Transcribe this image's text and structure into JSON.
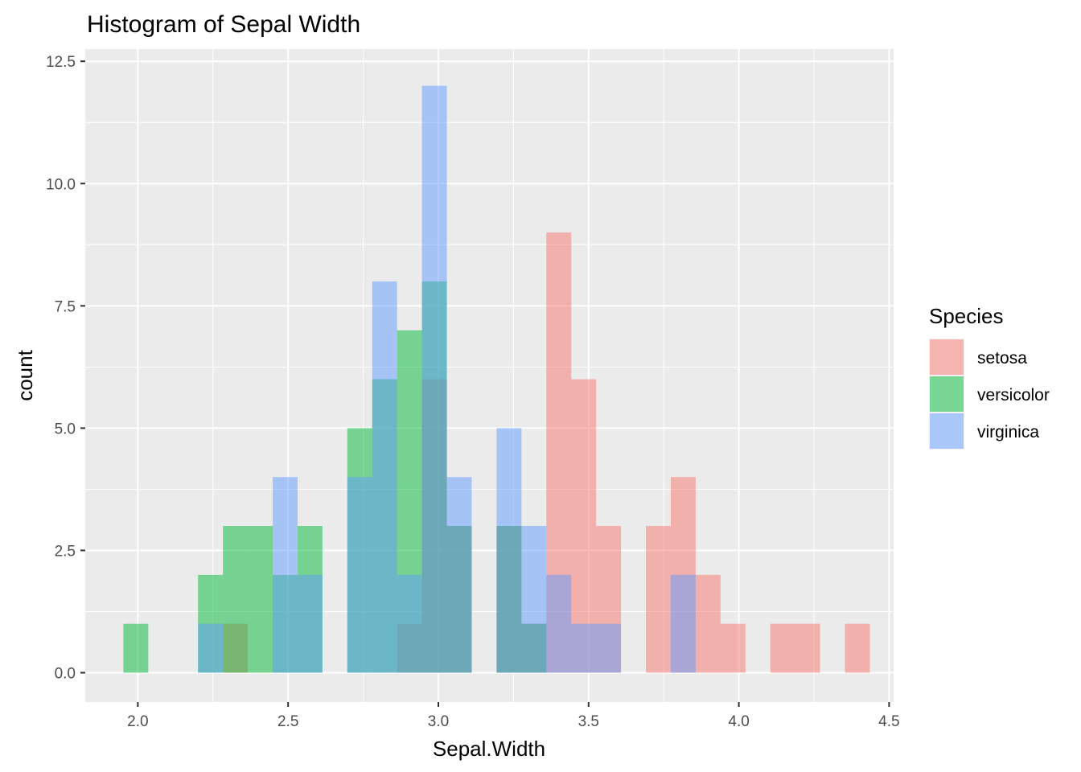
{
  "chart_data": {
    "type": "histogram",
    "title": "Histogram of Sepal Width",
    "xlabel": "Sepal.Width",
    "ylabel": "count",
    "xlim": [
      1.825,
      4.515
    ],
    "ylim": [
      -0.6,
      12.75
    ],
    "x_ticks": [
      "2.0",
      "2.5",
      "3.0",
      "3.5",
      "4.0",
      "4.5"
    ],
    "x_tick_values": [
      2.0,
      2.5,
      3.0,
      3.5,
      4.0,
      4.5
    ],
    "y_ticks": [
      "0.0",
      "2.5",
      "5.0",
      "7.5",
      "10.0",
      "12.5"
    ],
    "y_tick_values": [
      0,
      2.5,
      5,
      7.5,
      10,
      12.5
    ],
    "grid": true,
    "bin_width": 0.0828,
    "bin_centers": [
      1.9933,
      2.0761,
      2.1589,
      2.2417,
      2.3245,
      2.4073,
      2.4901,
      2.5729,
      2.6557,
      2.7385,
      2.8213,
      2.9041,
      2.9869,
      3.0697,
      3.1525,
      3.2353,
      3.3181,
      3.4009,
      3.4837,
      3.5665,
      3.6493,
      3.7321,
      3.8149,
      3.8977,
      3.9805,
      4.0633,
      4.1461,
      4.2289,
      4.3117,
      4.3945
    ],
    "legend": {
      "title": "Species",
      "position": "right"
    },
    "series": [
      {
        "name": "setosa",
        "color": "#f8766d",
        "values": [
          0,
          0,
          0,
          0,
          1,
          0,
          0,
          0,
          0,
          0,
          0,
          1,
          6,
          3,
          0,
          3,
          1,
          9,
          6,
          3,
          0,
          3,
          4,
          2,
          1,
          0,
          1,
          1,
          0,
          1
        ]
      },
      {
        "name": "versicolor",
        "color": "#00ba38",
        "values": [
          1,
          0,
          0,
          2,
          3,
          3,
          2,
          3,
          0,
          5,
          6,
          7,
          8,
          3,
          0,
          3,
          1,
          0,
          0,
          0,
          0,
          0,
          0,
          0,
          0,
          0,
          0,
          0,
          0,
          0
        ]
      },
      {
        "name": "virginica",
        "color": "#619cff",
        "values": [
          0,
          0,
          0,
          1,
          0,
          0,
          4,
          2,
          0,
          4,
          8,
          2,
          12,
          4,
          0,
          5,
          3,
          2,
          1,
          1,
          0,
          0,
          2,
          0,
          0,
          0,
          0,
          0,
          0,
          0
        ]
      }
    ]
  }
}
